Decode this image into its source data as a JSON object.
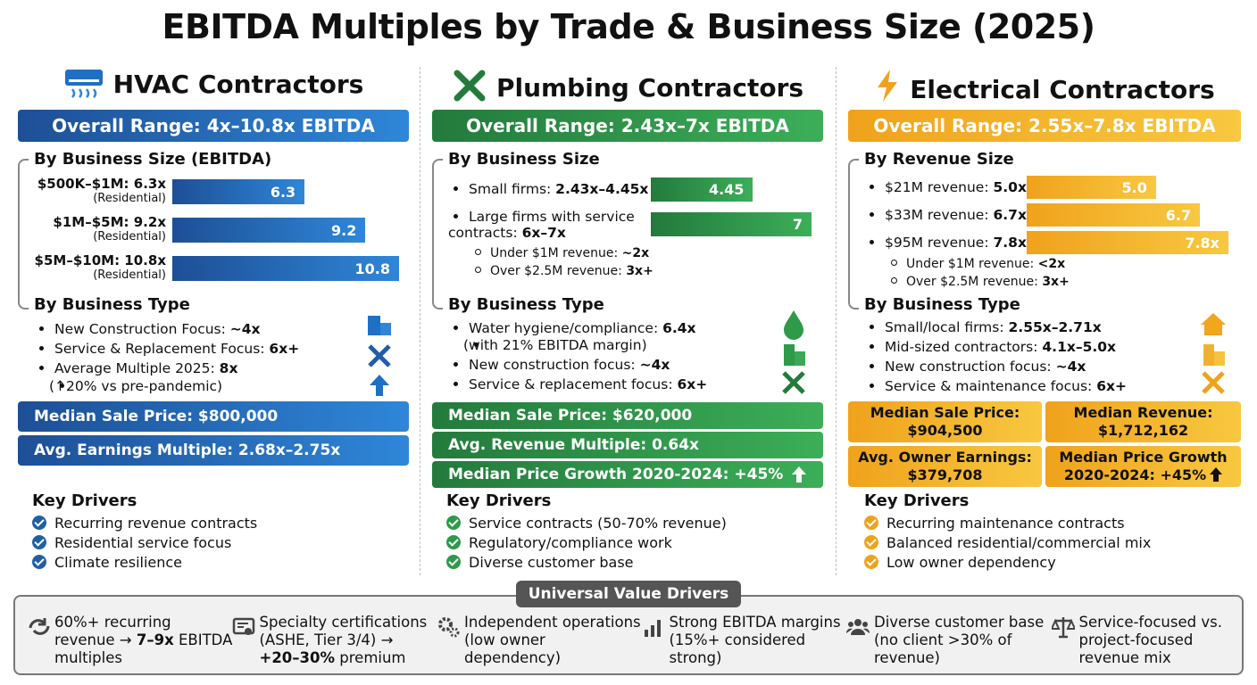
{
  "title": "EBITDA Multiples by Trade & Business Size (2025)",
  "columns": [
    {
      "heading": "HVAC Contractors",
      "range": "Overall Range: 4x–10.8x EBITDA",
      "size": {
        "heading": "By Business Size (EBITDA)",
        "rows": [
          {
            "label": "$500K–$1M: 6.3x",
            "note": "(Residential)",
            "value": 6.3
          },
          {
            "label": "$1M–$5M: 9.2x",
            "note": "(Residential)",
            "value": 9.2
          },
          {
            "label": "$5M–$10M: 10.8x",
            "note": "(Residential)",
            "value": 10.8
          }
        ]
      },
      "type": {
        "heading": "By Business Type",
        "items": [
          {
            "text": "New Construction Focus: ",
            "bold": "~4x"
          },
          {
            "text": "Service & Replacement Focus: ",
            "bold": "6x+"
          },
          {
            "text": "Average Multiple 2025: ",
            "bold": "8x",
            "note": "(↑20% vs pre-pandemic)"
          }
        ]
      },
      "stats": [
        "Median Sale Price: $800,000",
        "Avg. Earnings Multiple: 2.68x–2.75x"
      ],
      "drivers": {
        "heading": "Key Drivers",
        "items": [
          "Recurring revenue contracts",
          "Residential service focus",
          "Climate resilience"
        ]
      }
    },
    {
      "heading": "Plumbing Contractors",
      "range": "Overall Range: 2.43x–7x EBITDA",
      "size": {
        "heading": "By Business Size",
        "rows": [
          {
            "text": "Small firms: ",
            "bold": "2.43x–4.45x",
            "value": 4.45
          },
          {
            "text": "Large firms with service contracts: ",
            "bold": "6x–7x",
            "value": 7
          }
        ],
        "sub": [
          {
            "text": "Under $1M revenue: ",
            "bold": "~2x"
          },
          {
            "text": "Over $2.5M revenue: ",
            "bold": "3x+"
          }
        ]
      },
      "type": {
        "heading": "By Business Type",
        "items": [
          {
            "text": "Water hygiene/compliance: ",
            "bold": "6.4x",
            "note": "(with 21% EBITDA margin)"
          },
          {
            "text": "New construction focus: ",
            "bold": "~4x"
          },
          {
            "text": "Service & replacement focus: ",
            "bold": "6x+"
          }
        ]
      },
      "stats": [
        "Median Sale Price: $620,000",
        "Avg. Revenue Multiple: 0.64x",
        "Median Price Growth 2020-2024: +45%"
      ],
      "drivers": {
        "heading": "Key Drivers",
        "items": [
          "Service contracts (50-70% revenue)",
          "Regulatory/compliance work",
          "Diverse customer base"
        ]
      }
    },
    {
      "heading": "Electrical Contractors",
      "range": "Overall Range: 2.55x–7.8x EBITDA",
      "size": {
        "heading": "By Revenue Size",
        "rows": [
          {
            "text": "$21M revenue: ",
            "bold": "5.0x",
            "value": 5,
            "value_label": "5.0"
          },
          {
            "text": "$33M revenue: ",
            "bold": "6.7x",
            "value": 6.7
          },
          {
            "text": "$95M revenue: ",
            "bold": "7.8x",
            "value": 7.8,
            "value_label": "7.8x"
          }
        ],
        "sub": [
          {
            "text": "Under $1M revenue: ",
            "bold": "<2x"
          },
          {
            "text": "Over $2.5M revenue: ",
            "bold": "3x+"
          }
        ]
      },
      "type": {
        "heading": "By Business Type",
        "items": [
          {
            "text": "Small/local firms: ",
            "bold": "2.55x–2.71x"
          },
          {
            "text": "Mid-sized contractors: ",
            "bold": "4.1x–5.0x"
          },
          {
            "text": "New construction focus: ",
            "bold": "~4x"
          },
          {
            "text": "Service & maintenance focus: ",
            "bold": "6x+"
          }
        ]
      },
      "stats": [
        [
          "Median Sale Price:",
          "$904,500"
        ],
        [
          "Median Revenue:",
          "$1,712,162"
        ],
        [
          "Avg. Owner Earnings:",
          "$379,708"
        ],
        [
          "Median Price Growth",
          "2020-2024: +45%"
        ]
      ],
      "drivers": {
        "heading": "Key Drivers",
        "items": [
          "Recurring maintenance contracts",
          "Balanced residential/commercial mix",
          "Low owner dependency"
        ]
      }
    }
  ],
  "universal": {
    "heading": "Universal Value Drivers",
    "items": [
      {
        "text": "60%+ recurring revenue → ",
        "bold": "7–9x",
        "after": " EBITDA multiples"
      },
      {
        "text": "Specialty certifications (ASHE, Tier 3/4) → ",
        "bold": "+20–30%",
        "after": " premium"
      },
      {
        "text": "Independent operations (low owner dependency)"
      },
      {
        "text": "Strong EBITDA margins (15%+ considered strong)"
      },
      {
        "text": "Diverse customer base (no client >30% of revenue)"
      },
      {
        "text": "Service-focused vs. project-focused revenue mix"
      }
    ]
  }
}
